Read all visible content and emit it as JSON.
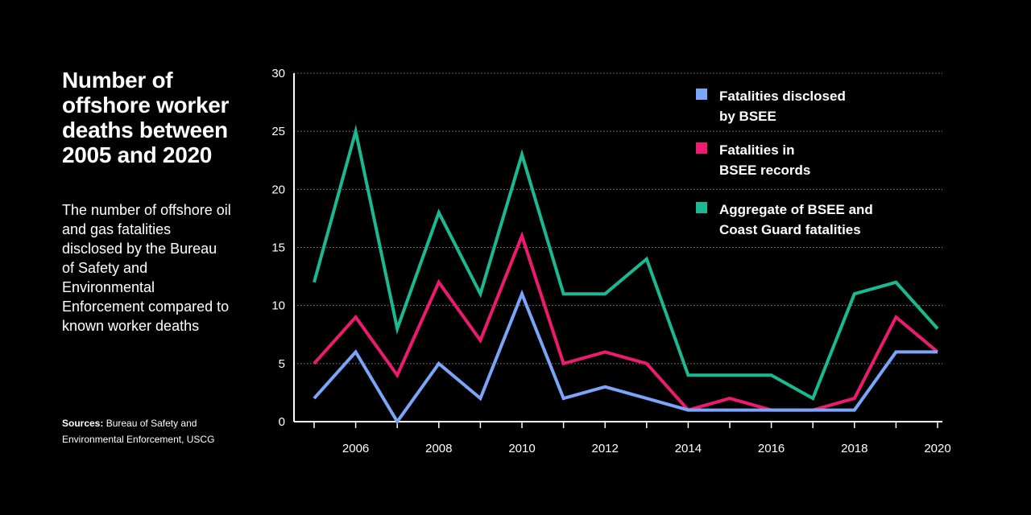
{
  "text": {
    "title": "Number of offshore worker deaths between 2005 and 2020",
    "subtitle": "The number of offshore oil and gas fatalities disclosed by the Bureau of Safety and Environmental Enforcement compared to known worker deaths",
    "sources_label": "Sources:",
    "sources_text": " Bureau of Safety and Environmental Enforcement, USCG"
  },
  "chart_data": {
    "type": "line",
    "title": "",
    "xlabel": "",
    "ylabel": "",
    "x": [
      2005,
      2006,
      2007,
      2008,
      2009,
      2010,
      2011,
      2012,
      2013,
      2014,
      2015,
      2016,
      2017,
      2018,
      2019,
      2020
    ],
    "x_ticks": [
      "2006",
      "2008",
      "2010",
      "2012",
      "2014",
      "2016",
      "2018",
      "2020"
    ],
    "y_ticks": [
      "0",
      "5",
      "10",
      "15",
      "20",
      "25",
      "30"
    ],
    "ylim": [
      0,
      30
    ],
    "xlim": [
      2005,
      2020
    ],
    "grid": "horizontal dotted",
    "legend_position": "top-right",
    "series": [
      {
        "name_lines": [
          "Fatalities disclosed",
          "by BSEE"
        ],
        "color": "#7aa5f8",
        "values": [
          2,
          6,
          0,
          5,
          2,
          11,
          2,
          3,
          2,
          1,
          1,
          1,
          1,
          1,
          6,
          6
        ]
      },
      {
        "name_lines": [
          "Fatalities in",
          "BSEE records"
        ],
        "color": "#ee1a6f",
        "values": [
          5,
          9,
          4,
          12,
          7,
          16,
          5,
          6,
          5,
          1,
          2,
          1,
          1,
          2,
          9,
          6
        ]
      },
      {
        "name_lines": [
          "Aggregate of BSEE and",
          "Coast Guard fatalities"
        ],
        "color": "#1bb991",
        "values": [
          12,
          25,
          8,
          18,
          11,
          23,
          11,
          11,
          14,
          4,
          4,
          4,
          2,
          11,
          12,
          8
        ]
      }
    ]
  }
}
